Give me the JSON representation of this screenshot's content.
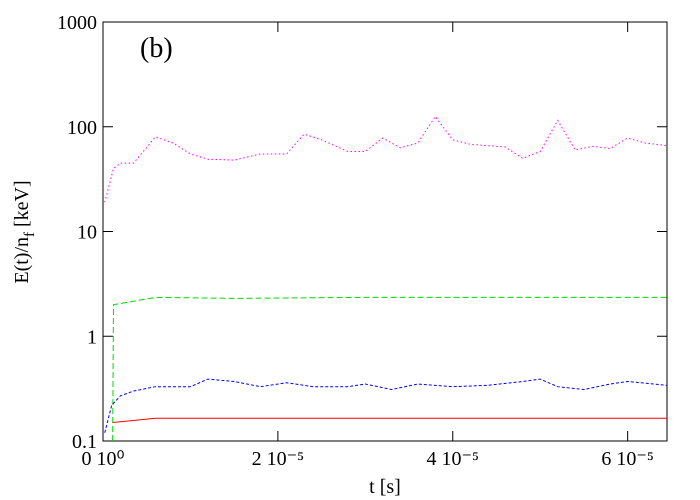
{
  "chart_data": {
    "type": "line",
    "annotation": "(b)",
    "xlabel": "t [s]",
    "ylabel": [
      "E(t)/n",
      "f",
      "[keV]"
    ],
    "xlim": [
      0,
      6.45e-05
    ],
    "ylim": [
      0.1,
      1000
    ],
    "ylog": true,
    "xticks": [
      {
        "value": 0,
        "label": "0 10⁰"
      },
      {
        "value": 2e-05,
        "label": "2 10⁻⁵"
      },
      {
        "value": 4e-05,
        "label": "4 10⁻⁵"
      },
      {
        "value": 6e-05,
        "label": "6 10⁻⁵"
      }
    ],
    "yticks": [
      0.1,
      1,
      10,
      100,
      1000
    ],
    "series": [
      {
        "color": "#ff00ff",
        "line_style": "dotted",
        "x": [
          2e-07,
          1.2e-06,
          2e-06,
          3.5e-06,
          6e-06,
          8e-06,
          1e-05,
          1.2e-05,
          1.5e-05,
          1.8e-05,
          2.1e-05,
          2.3e-05,
          2.5e-05,
          2.8e-05,
          3e-05,
          3.2e-05,
          3.4e-05,
          3.6e-05,
          3.8e-05,
          4e-05,
          4.2e-05,
          4.4e-05,
          4.6e-05,
          4.8e-05,
          5e-05,
          5.2e-05,
          5.4e-05,
          5.6e-05,
          5.8e-05,
          6e-05,
          6.2e-05,
          6.45e-05
        ],
        "values": [
          19,
          40,
          45,
          45,
          80,
          70,
          55,
          49,
          48,
          55,
          55,
          85,
          75,
          58,
          58,
          78,
          63,
          70,
          125,
          75,
          68,
          66,
          64,
          50,
          58,
          115,
          60,
          65,
          62,
          78,
          70,
          66
        ]
      },
      {
        "color": "#00dd00",
        "line_style": "dashed",
        "x": [
          1.1e-06,
          1.2e-06,
          6e-06,
          1.5e-05,
          3e-05,
          4.5e-05,
          6.45e-05
        ],
        "values": [
          0.1,
          2.0,
          2.35,
          2.3,
          2.35,
          2.35,
          2.35
        ]
      },
      {
        "color": "#0000ff",
        "line_style": "dotted2",
        "x": [
          2e-07,
          1e-06,
          2e-06,
          3.5e-06,
          6e-06,
          8e-06,
          1e-05,
          1.2e-05,
          1.5e-05,
          1.8e-05,
          2.1e-05,
          2.4e-05,
          2.8e-05,
          3e-05,
          3.3e-05,
          3.6e-05,
          4e-05,
          4.4e-05,
          4.8e-05,
          5e-05,
          5.2e-05,
          5.5e-05,
          5.8e-05,
          6e-05,
          6.45e-05
        ],
        "values": [
          0.12,
          0.22,
          0.27,
          0.3,
          0.33,
          0.33,
          0.33,
          0.39,
          0.37,
          0.33,
          0.36,
          0.33,
          0.33,
          0.35,
          0.31,
          0.35,
          0.33,
          0.34,
          0.37,
          0.39,
          0.33,
          0.31,
          0.35,
          0.37,
          0.34
        ]
      },
      {
        "color": "#ff0000",
        "line_style": "solid",
        "x": [
          1.1e-06,
          6e-06,
          2e-05,
          4e-05,
          6.45e-05
        ],
        "values": [
          0.15,
          0.165,
          0.165,
          0.165,
          0.165
        ]
      }
    ]
  }
}
